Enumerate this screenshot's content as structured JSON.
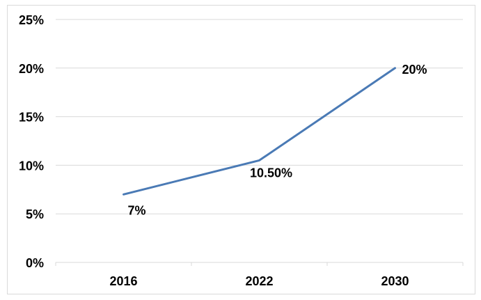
{
  "chart_data": {
    "type": "line",
    "title": "",
    "xlabel": "",
    "ylabel": "",
    "categories": [
      "2016",
      "2022",
      "2030"
    ],
    "series": [
      {
        "values": [
          7,
          10.5,
          20
        ],
        "data_labels": [
          "7%",
          "10.50%",
          "20%"
        ],
        "color": "#4a7ab5"
      }
    ],
    "ylim": [
      0,
      25
    ],
    "y_ticks": [
      0,
      5,
      10,
      15,
      20,
      25
    ],
    "y_tick_labels": [
      "0%",
      "5%",
      "10%",
      "15%",
      "20%",
      "25%"
    ],
    "grid": true,
    "grid_color": "#d9d9d9",
    "legend": "none"
  }
}
